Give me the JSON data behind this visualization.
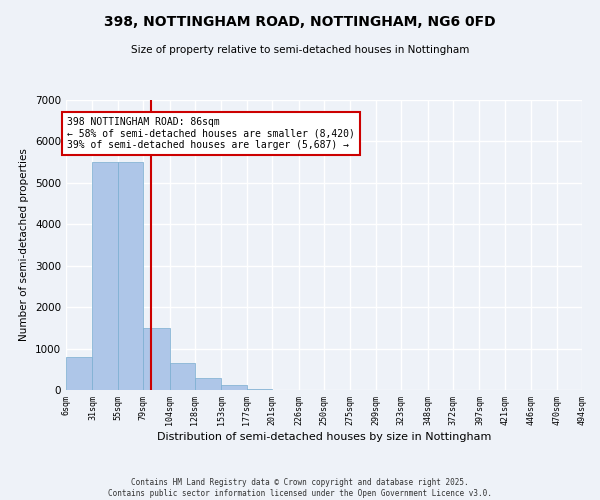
{
  "title1": "398, NOTTINGHAM ROAD, NOTTINGHAM, NG6 0FD",
  "title2": "Size of property relative to semi-detached houses in Nottingham",
  "xlabel": "Distribution of semi-detached houses by size in Nottingham",
  "ylabel": "Number of semi-detached properties",
  "bin_labels": [
    "6sqm",
    "31sqm",
    "55sqm",
    "79sqm",
    "104sqm",
    "128sqm",
    "153sqm",
    "177sqm",
    "201sqm",
    "226sqm",
    "250sqm",
    "275sqm",
    "299sqm",
    "323sqm",
    "348sqm",
    "372sqm",
    "397sqm",
    "421sqm",
    "446sqm",
    "470sqm",
    "494sqm"
  ],
  "bin_edges": [
    6,
    31,
    55,
    79,
    104,
    128,
    153,
    177,
    201,
    226,
    250,
    275,
    299,
    323,
    348,
    372,
    397,
    421,
    446,
    470,
    494
  ],
  "bar_heights": [
    800,
    5500,
    5500,
    1500,
    650,
    280,
    130,
    30,
    0,
    0,
    0,
    0,
    0,
    0,
    0,
    0,
    0,
    0,
    0,
    0
  ],
  "bar_color": "#aec6e8",
  "bar_edgecolor": "#7aaed0",
  "property_line_x": 86,
  "vline_color": "#cc0000",
  "annotation_title": "398 NOTTINGHAM ROAD: 86sqm",
  "annotation_line1": "← 58% of semi-detached houses are smaller (8,420)",
  "annotation_line2": "39% of semi-detached houses are larger (5,687) →",
  "annotation_box_color": "#cc0000",
  "ylim": [
    0,
    7000
  ],
  "yticks": [
    0,
    1000,
    2000,
    3000,
    4000,
    5000,
    6000,
    7000
  ],
  "footer1": "Contains HM Land Registry data © Crown copyright and database right 2025.",
  "footer2": "Contains public sector information licensed under the Open Government Licence v3.0.",
  "bg_color": "#eef2f8",
  "grid_color": "#ffffff"
}
